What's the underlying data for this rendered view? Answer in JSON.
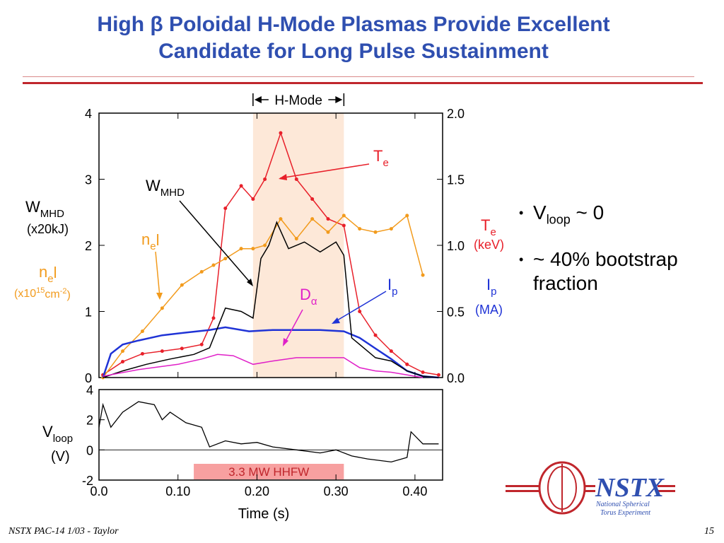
{
  "slide": {
    "title_line1": "High β Poloidal H-Mode Plasmas Provide Excellent",
    "title_line2": "Candidate for Long Pulse Sustainment",
    "footer_left": "NSTX PAC-14 1/03 - Taylor",
    "page_number": "15",
    "bullets": [
      {
        "main": "V",
        "sub": "loop",
        "rest": " ~ 0"
      },
      {
        "main": "~ 40% bootstrap fraction"
      }
    ],
    "logo": {
      "text": "NSTX",
      "line1": "National Spherical",
      "line2": "Torus Experiment"
    },
    "colors": {
      "title": "#2f4fb0",
      "rule": "#c0262c",
      "te": "#e8202a",
      "ne": "#f29b1d",
      "ip": "#1f33d6",
      "dalpha": "#e020c8",
      "hmode": "#fde8d8",
      "hhfw": "#f7a0a0"
    }
  },
  "chart_data": [
    {
      "type": "line",
      "hmode_band": {
        "x": [
          0.195,
          0.31
        ],
        "label": "H-Mode"
      },
      "xlim": [
        0.0,
        0.435
      ],
      "ylim_left": [
        0,
        4
      ],
      "ylim_right": [
        0.0,
        2.0
      ],
      "left_ticks": [
        "0",
        "1",
        "2",
        "3",
        "4"
      ],
      "right_ticks": [
        "0.0",
        "0.5",
        "1.0",
        "1.5",
        "2.0"
      ],
      "left_axis_labels": {
        "wmhd_main": "W",
        "wmhd_sub": "MHD",
        "wmhd_unit": "(x20kJ)",
        "ne_main": "n",
        "ne_sub": "e",
        "ne_tail": "l",
        "ne_unit_pre": "(x10",
        "ne_unit_sup1": "15",
        "ne_unit_mid": "cm",
        "ne_unit_sup2": "-2",
        "ne_unit_post": ")"
      },
      "right_axis_labels": {
        "te_main": "T",
        "te_sub": "e",
        "te_unit": "(keV)",
        "ip_main": "I",
        "ip_sub": "p",
        "ip_unit": "(MA)"
      },
      "annotations": {
        "te": {
          "main": "T",
          "sub": "e"
        },
        "wmhd": {
          "main": "W",
          "sub": "MHD"
        },
        "ne": {
          "main": "n",
          "sub": "e",
          "tail": "l"
        },
        "ip": {
          "main": "I",
          "sub": "p"
        },
        "dalpha": {
          "main": "D",
          "sub": "α"
        }
      },
      "series": [
        {
          "name": "Te",
          "axis": "right",
          "color": "#e8202a",
          "markers": true,
          "x": [
            0.005,
            0.03,
            0.055,
            0.08,
            0.105,
            0.13,
            0.145,
            0.16,
            0.18,
            0.195,
            0.21,
            0.23,
            0.25,
            0.27,
            0.29,
            0.31,
            0.33,
            0.35,
            0.37,
            0.39,
            0.41,
            0.43
          ],
          "y": [
            0.02,
            0.12,
            0.18,
            0.2,
            0.22,
            0.25,
            0.45,
            1.28,
            1.45,
            1.35,
            1.5,
            1.85,
            1.5,
            1.35,
            1.2,
            1.15,
            0.5,
            0.32,
            0.2,
            0.1,
            0.04,
            0.02
          ]
        },
        {
          "name": "neL",
          "axis": "left",
          "color": "#f29b1d",
          "markers": true,
          "x": [
            0.005,
            0.03,
            0.055,
            0.08,
            0.105,
            0.13,
            0.145,
            0.16,
            0.18,
            0.195,
            0.21,
            0.23,
            0.25,
            0.27,
            0.29,
            0.31,
            0.33,
            0.35,
            0.37,
            0.39,
            0.41
          ],
          "y": [
            0.0,
            0.4,
            0.7,
            1.05,
            1.4,
            1.6,
            1.7,
            1.8,
            1.95,
            1.95,
            2.0,
            2.4,
            2.1,
            2.4,
            2.2,
            2.45,
            2.25,
            2.2,
            2.25,
            2.45,
            1.55
          ]
        },
        {
          "name": "Ip",
          "axis": "right",
          "color": "#1f33d6",
          "markers": false,
          "x": [
            0.005,
            0.015,
            0.03,
            0.05,
            0.08,
            0.11,
            0.14,
            0.16,
            0.19,
            0.22,
            0.25,
            0.28,
            0.31,
            0.33,
            0.35,
            0.37,
            0.39,
            0.41,
            0.43
          ],
          "y": [
            0.0,
            0.18,
            0.25,
            0.28,
            0.32,
            0.34,
            0.36,
            0.38,
            0.35,
            0.36,
            0.36,
            0.36,
            0.35,
            0.3,
            0.22,
            0.14,
            0.05,
            0.01,
            0.0
          ]
        },
        {
          "name": "WMHD",
          "axis": "left",
          "color": "#000000",
          "markers": false,
          "x": [
            0.005,
            0.03,
            0.06,
            0.09,
            0.12,
            0.14,
            0.16,
            0.18,
            0.195,
            0.205,
            0.215,
            0.225,
            0.24,
            0.26,
            0.28,
            0.3,
            0.31,
            0.32,
            0.335,
            0.35,
            0.37,
            0.39,
            0.41,
            0.43
          ],
          "y": [
            0.0,
            0.1,
            0.2,
            0.28,
            0.35,
            0.45,
            1.05,
            1.0,
            0.9,
            1.8,
            2.0,
            2.35,
            1.95,
            2.05,
            1.9,
            2.05,
            1.85,
            0.6,
            0.45,
            0.3,
            0.25,
            0.1,
            0.02,
            0.0
          ]
        },
        {
          "name": "Dalpha",
          "axis": "left",
          "color": "#e020c8",
          "markers": false,
          "x": [
            0.005,
            0.05,
            0.1,
            0.13,
            0.15,
            0.17,
            0.195,
            0.22,
            0.25,
            0.28,
            0.31,
            0.33,
            0.35,
            0.37,
            0.39,
            0.41
          ],
          "y": [
            0.02,
            0.12,
            0.2,
            0.28,
            0.35,
            0.33,
            0.2,
            0.25,
            0.3,
            0.3,
            0.3,
            0.15,
            0.1,
            0.08,
            0.04,
            0.0
          ]
        }
      ]
    },
    {
      "type": "line",
      "xlim": [
        0.0,
        0.435
      ],
      "ylim": [
        -2,
        4
      ],
      "y_ticks": [
        "-2",
        "0",
        "2",
        "4"
      ],
      "x_ticks": [
        "0.0",
        "0.10",
        "0.20",
        "0.30",
        "0.40"
      ],
      "xlabel": "Time (s)",
      "ylabel_main": "V",
      "ylabel_sub": "loop",
      "ylabel_unit": "(V)",
      "hhfw_band": {
        "x": [
          0.12,
          0.31
        ],
        "label": "3.3 MW HHFW"
      },
      "series": [
        {
          "name": "Vloop",
          "color": "#000000",
          "x": [
            0.0,
            0.005,
            0.015,
            0.03,
            0.05,
            0.07,
            0.08,
            0.09,
            0.11,
            0.13,
            0.14,
            0.16,
            0.18,
            0.2,
            0.22,
            0.25,
            0.28,
            0.3,
            0.32,
            0.34,
            0.37,
            0.39,
            0.395,
            0.41,
            0.43
          ],
          "y": [
            1.5,
            3.0,
            1.5,
            2.5,
            3.2,
            3.0,
            2.0,
            2.5,
            1.8,
            1.5,
            0.2,
            0.6,
            0.4,
            0.5,
            0.2,
            0.0,
            -0.2,
            0.0,
            -0.4,
            -0.6,
            -0.8,
            -0.5,
            1.2,
            0.4,
            0.4
          ]
        }
      ]
    }
  ]
}
